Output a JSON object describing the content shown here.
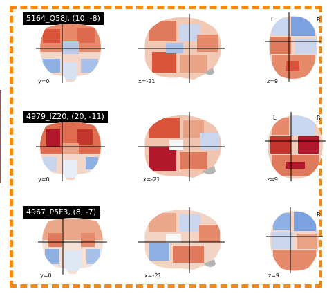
{
  "rows": [
    {
      "title": "5164_Q58J, (10, -8)",
      "coronal": "y=0",
      "sagittal": "x=-21",
      "axial": "z=9",
      "left_mark": "L",
      "right_mark": "R"
    },
    {
      "title": "4979_IZ20, (20, -11)",
      "coronal": "y=0",
      "sagittal": "x=-21",
      "axial": "z=9",
      "left_mark": "L",
      "right_mark": "R"
    },
    {
      "title": "4967_P5F3, (8, -7)",
      "coronal": "y=0",
      "sagittal": "x=-21",
      "axial": "z=9",
      "coronal_right_mark": "R",
      "right_mark": "R"
    }
  ],
  "colors": {
    "frame": "#f5890f",
    "hot": "#d73027",
    "warm": "#f4a582",
    "neutral": "#f7f7f7",
    "cool": "#92c5de",
    "cold": "#4575b4",
    "scalp": "#b3b3b3"
  }
}
